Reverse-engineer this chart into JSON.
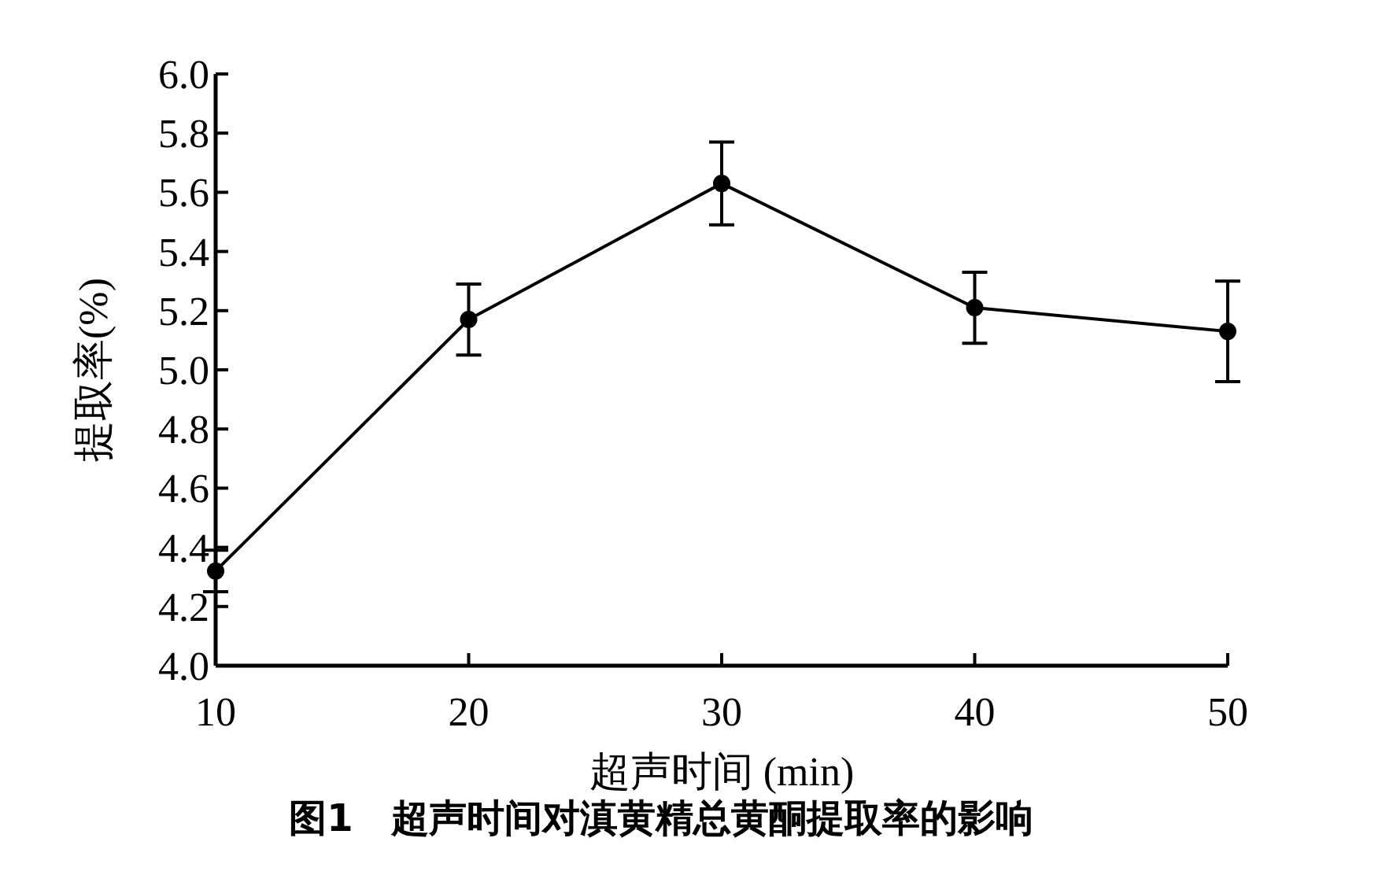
{
  "chart_data": {
    "type": "line",
    "xlabel": "超声时间 (min)",
    "ylabel": "提取率(%)",
    "annotations": [
      "图1　超声时间对滇黄精总黄酮提取率的影响"
    ],
    "x": [
      10,
      20,
      30,
      40,
      50
    ],
    "series": [
      {
        "color": "#000000",
        "values": [
          4.32,
          5.17,
          5.63,
          5.21,
          5.13
        ],
        "errors": [
          0.07,
          0.12,
          0.14,
          0.12,
          0.17
        ]
      }
    ],
    "xlim": [
      10,
      50
    ],
    "xticks": [
      10,
      20,
      30,
      40,
      50
    ],
    "ylim": [
      4.0,
      6.0
    ],
    "yticks": [
      {
        "value": 4.0,
        "label": "4.0"
      },
      {
        "value": 4.2,
        "label": "4.2"
      },
      {
        "value": 4.4,
        "label": "4.4"
      },
      {
        "value": 4.6,
        "label": "4.6"
      },
      {
        "value": 4.8,
        "label": "4.8"
      },
      {
        "value": 5.0,
        "label": "5.0"
      },
      {
        "value": 5.2,
        "label": "5.2"
      },
      {
        "value": 5.4,
        "label": "5.4"
      },
      {
        "value": 5.6,
        "label": "5.6"
      },
      {
        "value": 5.8,
        "label": "5.8"
      },
      {
        "value": 6.0,
        "label": "6.0"
      }
    ],
    "marker": "circle",
    "line_style": "solid"
  }
}
